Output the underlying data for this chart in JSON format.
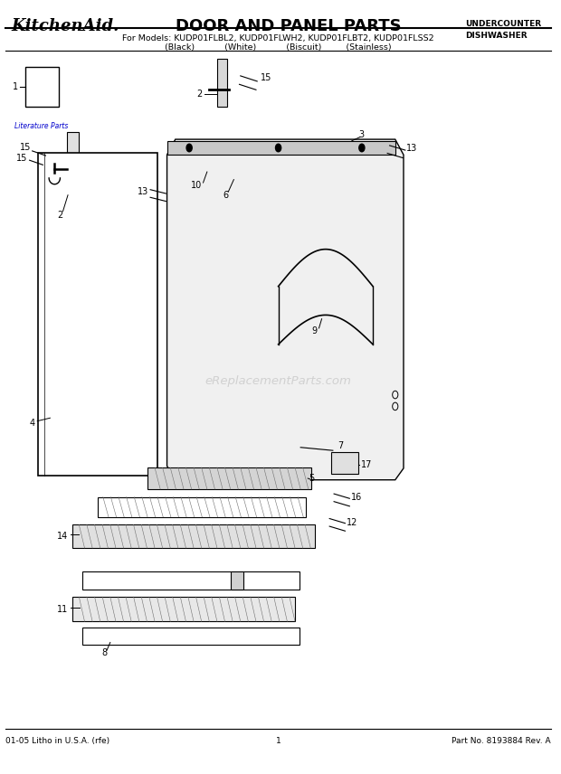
{
  "title": "DOOR AND PANEL PARTS",
  "brand": "KitchenAid.",
  "subtitle": "For Models: KUDP01FLBL2, KUDP01FLWH2, KUDP01FLBT2, KUDP01FLSS2",
  "subtitle2": "(Black)           (White)           (Biscuit)         (Stainless)",
  "top_right_line1": "UNDERCOUNTER",
  "top_right_line2": "DISHWASHER",
  "footer_left": "01-05 Litho in U.S.A. (rfe)",
  "footer_center": "1",
  "footer_right": "Part No. 8193884 Rev. A",
  "watermark": "eReplacementParts.com",
  "bg_color": "#ffffff",
  "line_color": "#000000",
  "lit_link_color": "#0000cc"
}
